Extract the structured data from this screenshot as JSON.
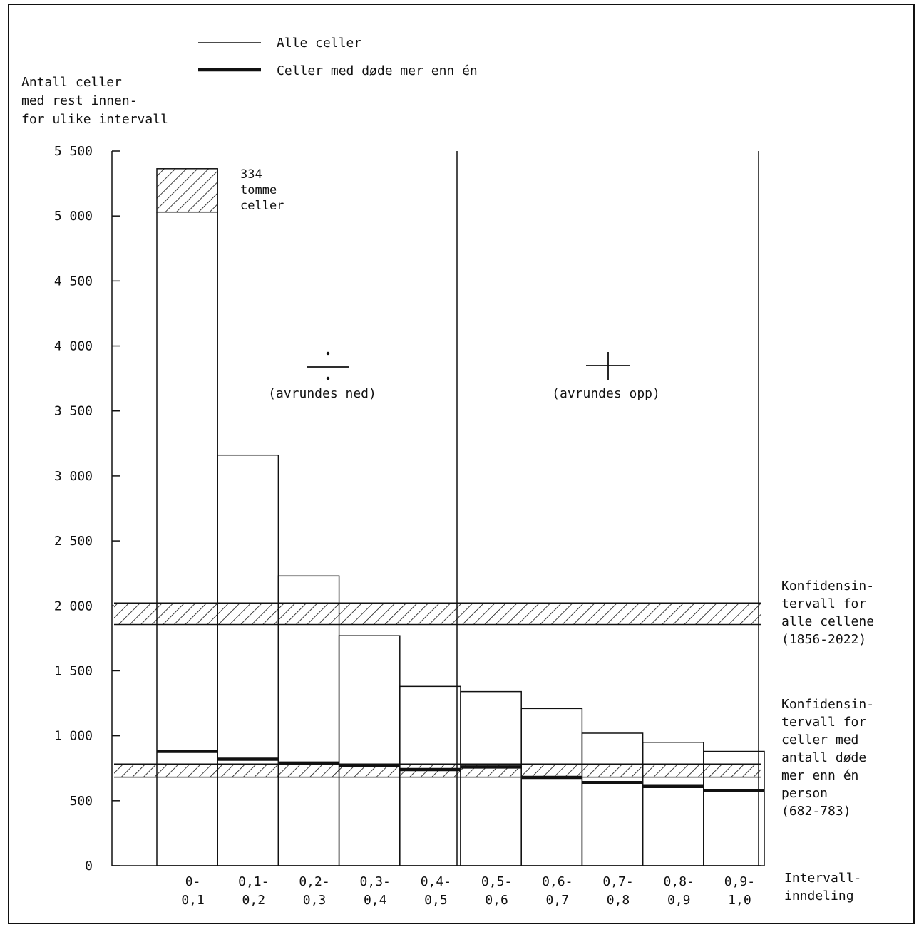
{
  "chart_data": {
    "type": "bar",
    "ylabel": [
      "Antall celler",
      "med rest innen-",
      "for ulike intervall"
    ],
    "xlabel": [
      "Intervall-",
      "inndeling"
    ],
    "ylim": [
      0,
      5500
    ],
    "yticks": [
      0,
      500,
      1000,
      1500,
      2000,
      2500,
      3000,
      3500,
      4000,
      4500,
      5000,
      5500
    ],
    "ytick_labels": [
      "0",
      "500",
      "1 000",
      "1 500",
      "2 000",
      "2 500",
      "3 000",
      "3 500",
      "4 000",
      "4 500",
      "5 000",
      "5 500"
    ],
    "categories": [
      [
        "0-",
        "0,1"
      ],
      [
        "0,1-",
        "0,2"
      ],
      [
        "0,2-",
        "0,3"
      ],
      [
        "0,3-",
        "0,4"
      ],
      [
        "0,4-",
        "0,5"
      ],
      [
        "0,5-",
        "0,6"
      ],
      [
        "0,6-",
        "0,7"
      ],
      [
        "0,7-",
        "0,8"
      ],
      [
        "0,8-",
        "0,9"
      ],
      [
        "0,9-",
        "1,0"
      ]
    ],
    "series": [
      {
        "name": "Alle celler",
        "values": [
          5030,
          3160,
          2230,
          1770,
          1380,
          1340,
          1210,
          1020,
          950,
          880
        ]
      },
      {
        "name": "Celler med døde mer enn én",
        "values": [
          880,
          820,
          790,
          770,
          740,
          760,
          680,
          640,
          610,
          580
        ]
      }
    ],
    "empty_cells": {
      "value": 334,
      "label": [
        "334",
        "tomme",
        "celler"
      ]
    },
    "confidence_bands": [
      {
        "low": 1856,
        "high": 2022,
        "label": [
          "Konfidensin-",
          "tervall for",
          "alle cellene",
          "(1856-2022)"
        ]
      },
      {
        "low": 682,
        "high": 783,
        "label": [
          "Konfidensin-",
          "tervall for",
          "celler med",
          "antall døde",
          "mer enn én",
          "person",
          "(682-783)"
        ]
      }
    ],
    "regions": [
      {
        "symbol": "÷",
        "label": "(avrundes ned)"
      },
      {
        "symbol": "+",
        "label": "(avrundes opp)"
      }
    ],
    "legend_position": "top-center",
    "grid": false,
    "colors": {
      "ink": "#111111",
      "background": "#ffffff"
    }
  }
}
